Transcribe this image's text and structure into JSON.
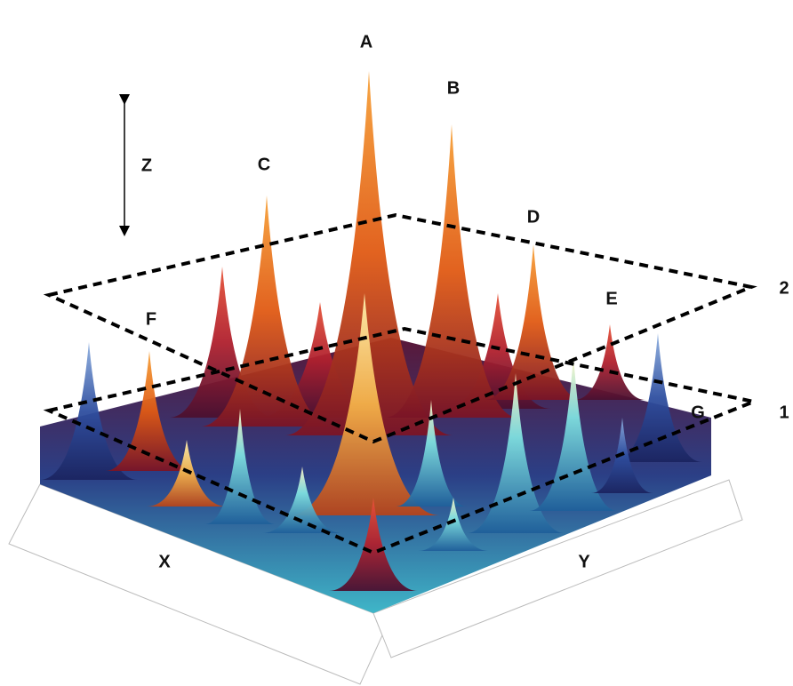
{
  "axes": {
    "x": "X",
    "y": "Y",
    "z": "Z"
  },
  "peaks": [
    "A",
    "B",
    "C",
    "D",
    "E",
    "F",
    "G"
  ],
  "planes": [
    "1",
    "2"
  ]
}
